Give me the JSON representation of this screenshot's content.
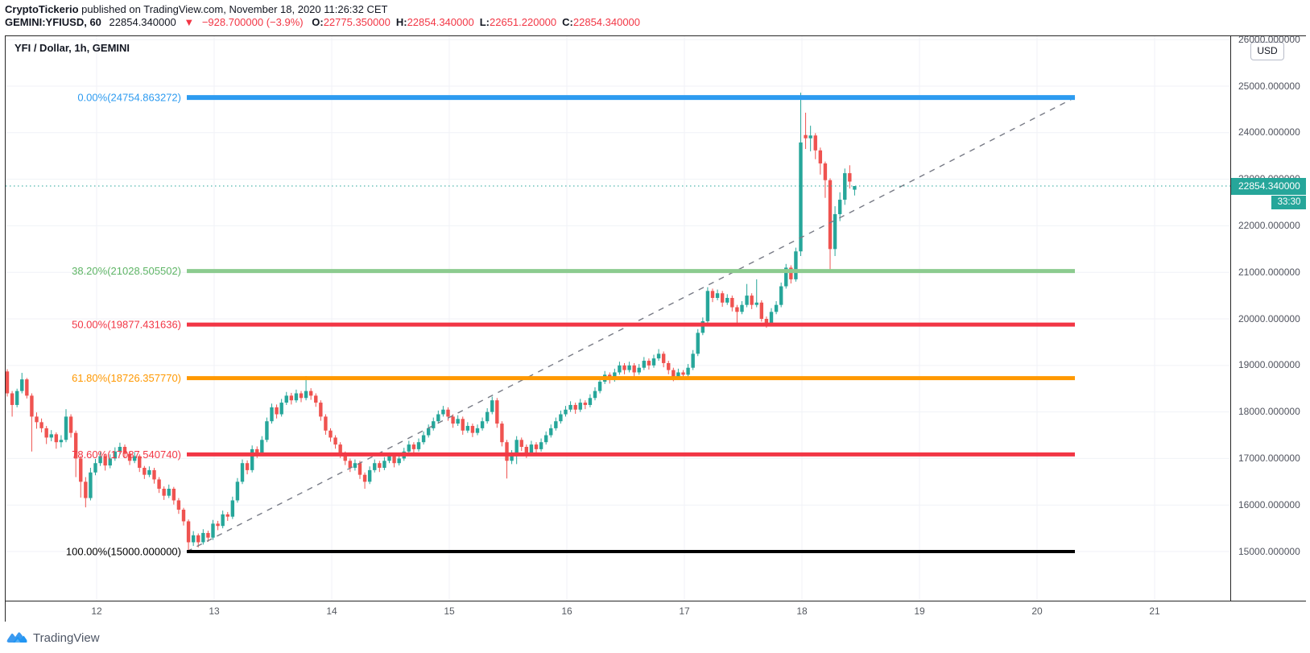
{
  "header": {
    "byline_bold": "CryptoTickerio",
    "byline_rest": " published on TradingView.com, November 18, 2020 11:26:32 CET",
    "symbol": "GEMINI:YFIUSD, 60",
    "last_price": "22854.340000",
    "change_arrow": "▼",
    "change_text": "−928.700000 (−3.9%)",
    "ohlc": [
      {
        "label": "O:",
        "value": "22775.350000"
      },
      {
        "label": "H:",
        "value": "22854.340000"
      },
      {
        "label": "L:",
        "value": "22651.220000"
      },
      {
        "label": "C:",
        "value": "22854.340000"
      }
    ]
  },
  "chart": {
    "title": "YFI / Dollar, 1h, GEMINI",
    "currency_badge": "USD",
    "price_badge": "22854.340000",
    "countdown": "33:30",
    "watermark_brand": "TradingView",
    "accent_teal": "#26a69a",
    "accent_red": "#ef5350"
  },
  "axes": {
    "price_ticks": [
      {
        "v": 26000,
        "label": "26000.000000"
      },
      {
        "v": 25000,
        "label": "25000.000000"
      },
      {
        "v": 24000,
        "label": "24000.000000"
      },
      {
        "v": 23000,
        "label": "23000.000000"
      },
      {
        "v": 22000,
        "label": "22000.000000"
      },
      {
        "v": 21000,
        "label": "21000.000000"
      },
      {
        "v": 20000,
        "label": "20000.000000"
      },
      {
        "v": 19000,
        "label": "19000.000000"
      },
      {
        "v": 18000,
        "label": "18000.000000"
      },
      {
        "v": 17000,
        "label": "17000.000000"
      },
      {
        "v": 16000,
        "label": "16000.000000"
      },
      {
        "v": 15000,
        "label": "15000.000000"
      }
    ],
    "time_ticks": [
      "12",
      "13",
      "14",
      "15",
      "16",
      "17",
      "18",
      "19",
      "20",
      "21"
    ]
  },
  "chart_data": {
    "type": "candlestick",
    "title": "YFI / Dollar, 1h, GEMINI",
    "symbol": "GEMINI:YFIUSD",
    "interval": "1h",
    "up_color": "#26a69a",
    "down_color": "#ef5350",
    "grid": true,
    "visible_price_range": [
      13950,
      26070
    ],
    "x_day_labels": [
      "12",
      "13",
      "14",
      "15",
      "16",
      "17",
      "18",
      "19",
      "20",
      "21"
    ],
    "last_price": 22854.34,
    "last_price_line_color": "#26a69a",
    "trend_line": {
      "style": "dashed",
      "color": "#787b86",
      "from_price": 15000,
      "to_price": 24754.863272
    },
    "fib_levels": [
      {
        "pct": "0.00%",
        "value": 24754.863272,
        "label": "0.00%(24754.863272)",
        "line_color": "#2d9bf0",
        "text_color": "#2d9bf0",
        "width": 6
      },
      {
        "pct": "38.20%",
        "value": 21028.505502,
        "label": "38.20%(21028.505502)",
        "line_color": "#8ccb8f",
        "text_color": "#5fb566",
        "width": 5
      },
      {
        "pct": "50.00%",
        "value": 19877.431636,
        "label": "50.00%(19877.431636)",
        "line_color": "#f23645",
        "text_color": "#f23645",
        "width": 5
      },
      {
        "pct": "61.80%",
        "value": 18726.35777,
        "label": "61.80%(18726.357770)",
        "line_color": "#ff9800",
        "text_color": "#ff9800",
        "width": 5
      },
      {
        "pct": "78.60%",
        "value": 17087.54074,
        "label": "78.60%(17087.540740)",
        "line_color": "#f23645",
        "text_color": "#f23645",
        "width": 5
      },
      {
        "pct": "100.00%",
        "value": 15000.0,
        "label": "100.00%(15000.000000)",
        "line_color": "#000000",
        "text_color": "#000000",
        "width": 4
      }
    ],
    "candles_format": [
      "open",
      "high",
      "low",
      "close"
    ],
    "candles": [
      [
        18870,
        18920,
        18330,
        18400
      ],
      [
        18400,
        18450,
        17900,
        18150
      ],
      [
        18150,
        18500,
        18100,
        18450
      ],
      [
        18450,
        18840,
        18400,
        18700
      ],
      [
        18700,
        18730,
        18290,
        18350
      ],
      [
        18350,
        18400,
        17150,
        17900
      ],
      [
        17900,
        17990,
        17640,
        17780
      ],
      [
        17780,
        17860,
        17560,
        17650
      ],
      [
        17650,
        17700,
        17310,
        17450
      ],
      [
        17450,
        17610,
        17370,
        17520
      ],
      [
        17520,
        17560,
        17210,
        17350
      ],
      [
        17350,
        17500,
        17240,
        17400
      ],
      [
        17400,
        18060,
        17350,
        17900
      ],
      [
        17900,
        17950,
        17450,
        17550
      ],
      [
        17550,
        17600,
        16600,
        17000
      ],
      [
        17000,
        17060,
        16160,
        16500
      ],
      [
        16500,
        16600,
        15950,
        16150
      ],
      [
        16150,
        16800,
        16100,
        16700
      ],
      [
        16700,
        16990,
        16640,
        16900
      ],
      [
        16900,
        17140,
        16840,
        17050
      ],
      [
        17050,
        17100,
        16740,
        16850
      ],
      [
        16850,
        17090,
        16790,
        17000
      ],
      [
        17000,
        17240,
        16950,
        17150
      ],
      [
        17150,
        17340,
        17090,
        17250
      ],
      [
        17250,
        17300,
        17010,
        17100
      ],
      [
        17100,
        17160,
        16860,
        16950
      ],
      [
        16950,
        17140,
        16900,
        17050
      ],
      [
        17050,
        17090,
        16710,
        16800
      ],
      [
        16800,
        16840,
        16560,
        16650
      ],
      [
        16650,
        16830,
        16600,
        16750
      ],
      [
        16750,
        16800,
        16460,
        16550
      ],
      [
        16550,
        16600,
        16260,
        16350
      ],
      [
        16350,
        16400,
        16110,
        16200
      ],
      [
        16200,
        16440,
        16150,
        16350
      ],
      [
        16350,
        16390,
        16010,
        16100
      ],
      [
        16100,
        16150,
        15810,
        15900
      ],
      [
        15900,
        15940,
        15560,
        15650
      ],
      [
        15650,
        15690,
        15000,
        15200
      ],
      [
        15200,
        15440,
        15120,
        15350
      ],
      [
        15350,
        15390,
        15090,
        15200
      ],
      [
        15200,
        15480,
        15150,
        15400
      ],
      [
        15400,
        15450,
        15210,
        15300
      ],
      [
        15300,
        15680,
        15250,
        15600
      ],
      [
        15600,
        15660,
        15460,
        15550
      ],
      [
        15550,
        15880,
        15500,
        15800
      ],
      [
        15800,
        15850,
        15660,
        15750
      ],
      [
        15750,
        16180,
        15700,
        16100
      ],
      [
        16100,
        16580,
        16050,
        16500
      ],
      [
        16500,
        16980,
        16450,
        16900
      ],
      [
        16900,
        16960,
        16660,
        16750
      ],
      [
        16750,
        17280,
        16700,
        17200
      ],
      [
        17200,
        17260,
        17010,
        17100
      ],
      [
        17100,
        17480,
        17050,
        17400
      ],
      [
        17400,
        17880,
        17350,
        17800
      ],
      [
        17800,
        18180,
        17750,
        18100
      ],
      [
        18100,
        18160,
        17860,
        17950
      ],
      [
        17950,
        18280,
        17900,
        18200
      ],
      [
        18200,
        18430,
        18150,
        18350
      ],
      [
        18350,
        18410,
        18160,
        18250
      ],
      [
        18250,
        18480,
        18200,
        18400
      ],
      [
        18400,
        18450,
        18210,
        18300
      ],
      [
        18300,
        18770,
        18250,
        18450
      ],
      [
        18450,
        18510,
        18260,
        18350
      ],
      [
        18350,
        18400,
        18110,
        18200
      ],
      [
        18200,
        18250,
        17810,
        17900
      ],
      [
        17900,
        17950,
        17510,
        17600
      ],
      [
        17600,
        17650,
        17360,
        17450
      ],
      [
        17450,
        17500,
        17210,
        17300
      ],
      [
        17300,
        17350,
        17010,
        17100
      ],
      [
        17100,
        17150,
        16860,
        16950
      ],
      [
        16950,
        17000,
        16710,
        16800
      ],
      [
        16800,
        16980,
        16740,
        16900
      ],
      [
        16900,
        16950,
        16560,
        16650
      ],
      [
        16650,
        16700,
        16350,
        16500
      ],
      [
        16500,
        16830,
        16450,
        16750
      ],
      [
        16750,
        16980,
        16700,
        16900
      ],
      [
        16900,
        16950,
        16710,
        16800
      ],
      [
        16800,
        17030,
        16750,
        16950
      ],
      [
        16950,
        17130,
        16900,
        17050
      ],
      [
        17050,
        17100,
        16810,
        16900
      ],
      [
        16900,
        17080,
        16850,
        17000
      ],
      [
        17000,
        17230,
        16950,
        17150
      ],
      [
        17150,
        17380,
        17100,
        17300
      ],
      [
        17300,
        17350,
        17110,
        17200
      ],
      [
        17200,
        17430,
        17150,
        17350
      ],
      [
        17350,
        17580,
        17300,
        17500
      ],
      [
        17500,
        17730,
        17450,
        17650
      ],
      [
        17650,
        17880,
        17600,
        17800
      ],
      [
        17800,
        18030,
        17750,
        17950
      ],
      [
        17950,
        18130,
        17900,
        18050
      ],
      [
        18050,
        18100,
        17810,
        17900
      ],
      [
        17900,
        17950,
        17660,
        17750
      ],
      [
        17750,
        17930,
        17700,
        17850
      ],
      [
        17850,
        17900,
        17510,
        17600
      ],
      [
        17600,
        17780,
        17550,
        17700
      ],
      [
        17700,
        17750,
        17460,
        17550
      ],
      [
        17550,
        17730,
        17500,
        17650
      ],
      [
        17650,
        17880,
        17600,
        17800
      ],
      [
        17800,
        18080,
        17750,
        18000
      ],
      [
        18000,
        18330,
        17950,
        18250
      ],
      [
        18250,
        18300,
        17660,
        17750
      ],
      [
        17750,
        17800,
        17260,
        17350
      ],
      [
        17350,
        17400,
        16570,
        16950
      ],
      [
        16950,
        17180,
        16880,
        17100
      ],
      [
        17100,
        17480,
        16880,
        17400
      ],
      [
        17400,
        17450,
        17160,
        17250
      ],
      [
        17250,
        17300,
        17010,
        17100
      ],
      [
        17100,
        17380,
        17050,
        17300
      ],
      [
        17300,
        17350,
        17110,
        17200
      ],
      [
        17200,
        17430,
        17150,
        17350
      ],
      [
        17350,
        17580,
        17300,
        17500
      ],
      [
        17500,
        17730,
        17450,
        17650
      ],
      [
        17650,
        17880,
        17600,
        17800
      ],
      [
        17800,
        18030,
        17750,
        17950
      ],
      [
        17950,
        18130,
        17900,
        18050
      ],
      [
        18050,
        18230,
        18000,
        18150
      ],
      [
        18150,
        18200,
        17960,
        18050
      ],
      [
        18050,
        18280,
        18000,
        18200
      ],
      [
        18200,
        18250,
        18060,
        18150
      ],
      [
        18150,
        18380,
        18100,
        18300
      ],
      [
        18300,
        18530,
        18250,
        18450
      ],
      [
        18450,
        18730,
        18400,
        18650
      ],
      [
        18650,
        18880,
        18600,
        18800
      ],
      [
        18800,
        18850,
        18610,
        18700
      ],
      [
        18700,
        18930,
        18650,
        18850
      ],
      [
        18850,
        19080,
        18800,
        19000
      ],
      [
        19000,
        19050,
        18810,
        18900
      ],
      [
        18900,
        19080,
        18850,
        19000
      ],
      [
        19000,
        19050,
        18760,
        18850
      ],
      [
        18850,
        19030,
        18800,
        18950
      ],
      [
        18950,
        19180,
        18900,
        19100
      ],
      [
        19100,
        19150,
        18910,
        19000
      ],
      [
        19000,
        19230,
        18950,
        19150
      ],
      [
        19150,
        19350,
        19100,
        19250
      ],
      [
        19250,
        19300,
        18960,
        19050
      ],
      [
        19050,
        19100,
        18810,
        18900
      ],
      [
        18900,
        18950,
        18660,
        18750
      ],
      [
        18750,
        18930,
        18700,
        18850
      ],
      [
        18850,
        18900,
        18710,
        18800
      ],
      [
        18800,
        19030,
        18750,
        18950
      ],
      [
        18950,
        19330,
        18900,
        19250
      ],
      [
        19250,
        19780,
        19200,
        19700
      ],
      [
        19700,
        20030,
        19650,
        19950
      ],
      [
        19950,
        20680,
        19900,
        20600
      ],
      [
        20600,
        20650,
        20360,
        20450
      ],
      [
        20450,
        20630,
        20400,
        20550
      ],
      [
        20550,
        20600,
        20260,
        20350
      ],
      [
        20350,
        20530,
        20300,
        20450
      ],
      [
        20450,
        20500,
        20160,
        20250
      ],
      [
        20250,
        20300,
        19900,
        20150
      ],
      [
        20150,
        20380,
        20100,
        20300
      ],
      [
        20300,
        20750,
        20250,
        20500
      ],
      [
        20500,
        20550,
        20210,
        20300
      ],
      [
        20300,
        20850,
        20250,
        20350
      ],
      [
        20350,
        20400,
        19940,
        20000
      ],
      [
        20000,
        20050,
        19810,
        19900
      ],
      [
        19900,
        20230,
        19850,
        20150
      ],
      [
        20150,
        20380,
        20100,
        20300
      ],
      [
        20300,
        20780,
        20250,
        20700
      ],
      [
        20700,
        21180,
        20650,
        21100
      ],
      [
        21100,
        21150,
        20760,
        20850
      ],
      [
        20850,
        21530,
        20800,
        21450
      ],
      [
        21450,
        24860,
        21350,
        23790
      ],
      [
        23950,
        24430,
        23650,
        23880
      ],
      [
        23880,
        24150,
        23600,
        23940
      ],
      [
        23940,
        23990,
        23430,
        23620
      ],
      [
        23620,
        23680,
        23100,
        23340
      ],
      [
        23340,
        23380,
        22600,
        22980
      ],
      [
        22980,
        23020,
        21060,
        21500
      ],
      [
        21500,
        22420,
        21350,
        22250
      ],
      [
        22250,
        22720,
        22100,
        22560
      ],
      [
        22560,
        23230,
        22450,
        23130
      ],
      [
        23130,
        23300,
        22800,
        22950
      ],
      [
        22775.35,
        22854.34,
        22651.22,
        22854.34
      ]
    ]
  }
}
